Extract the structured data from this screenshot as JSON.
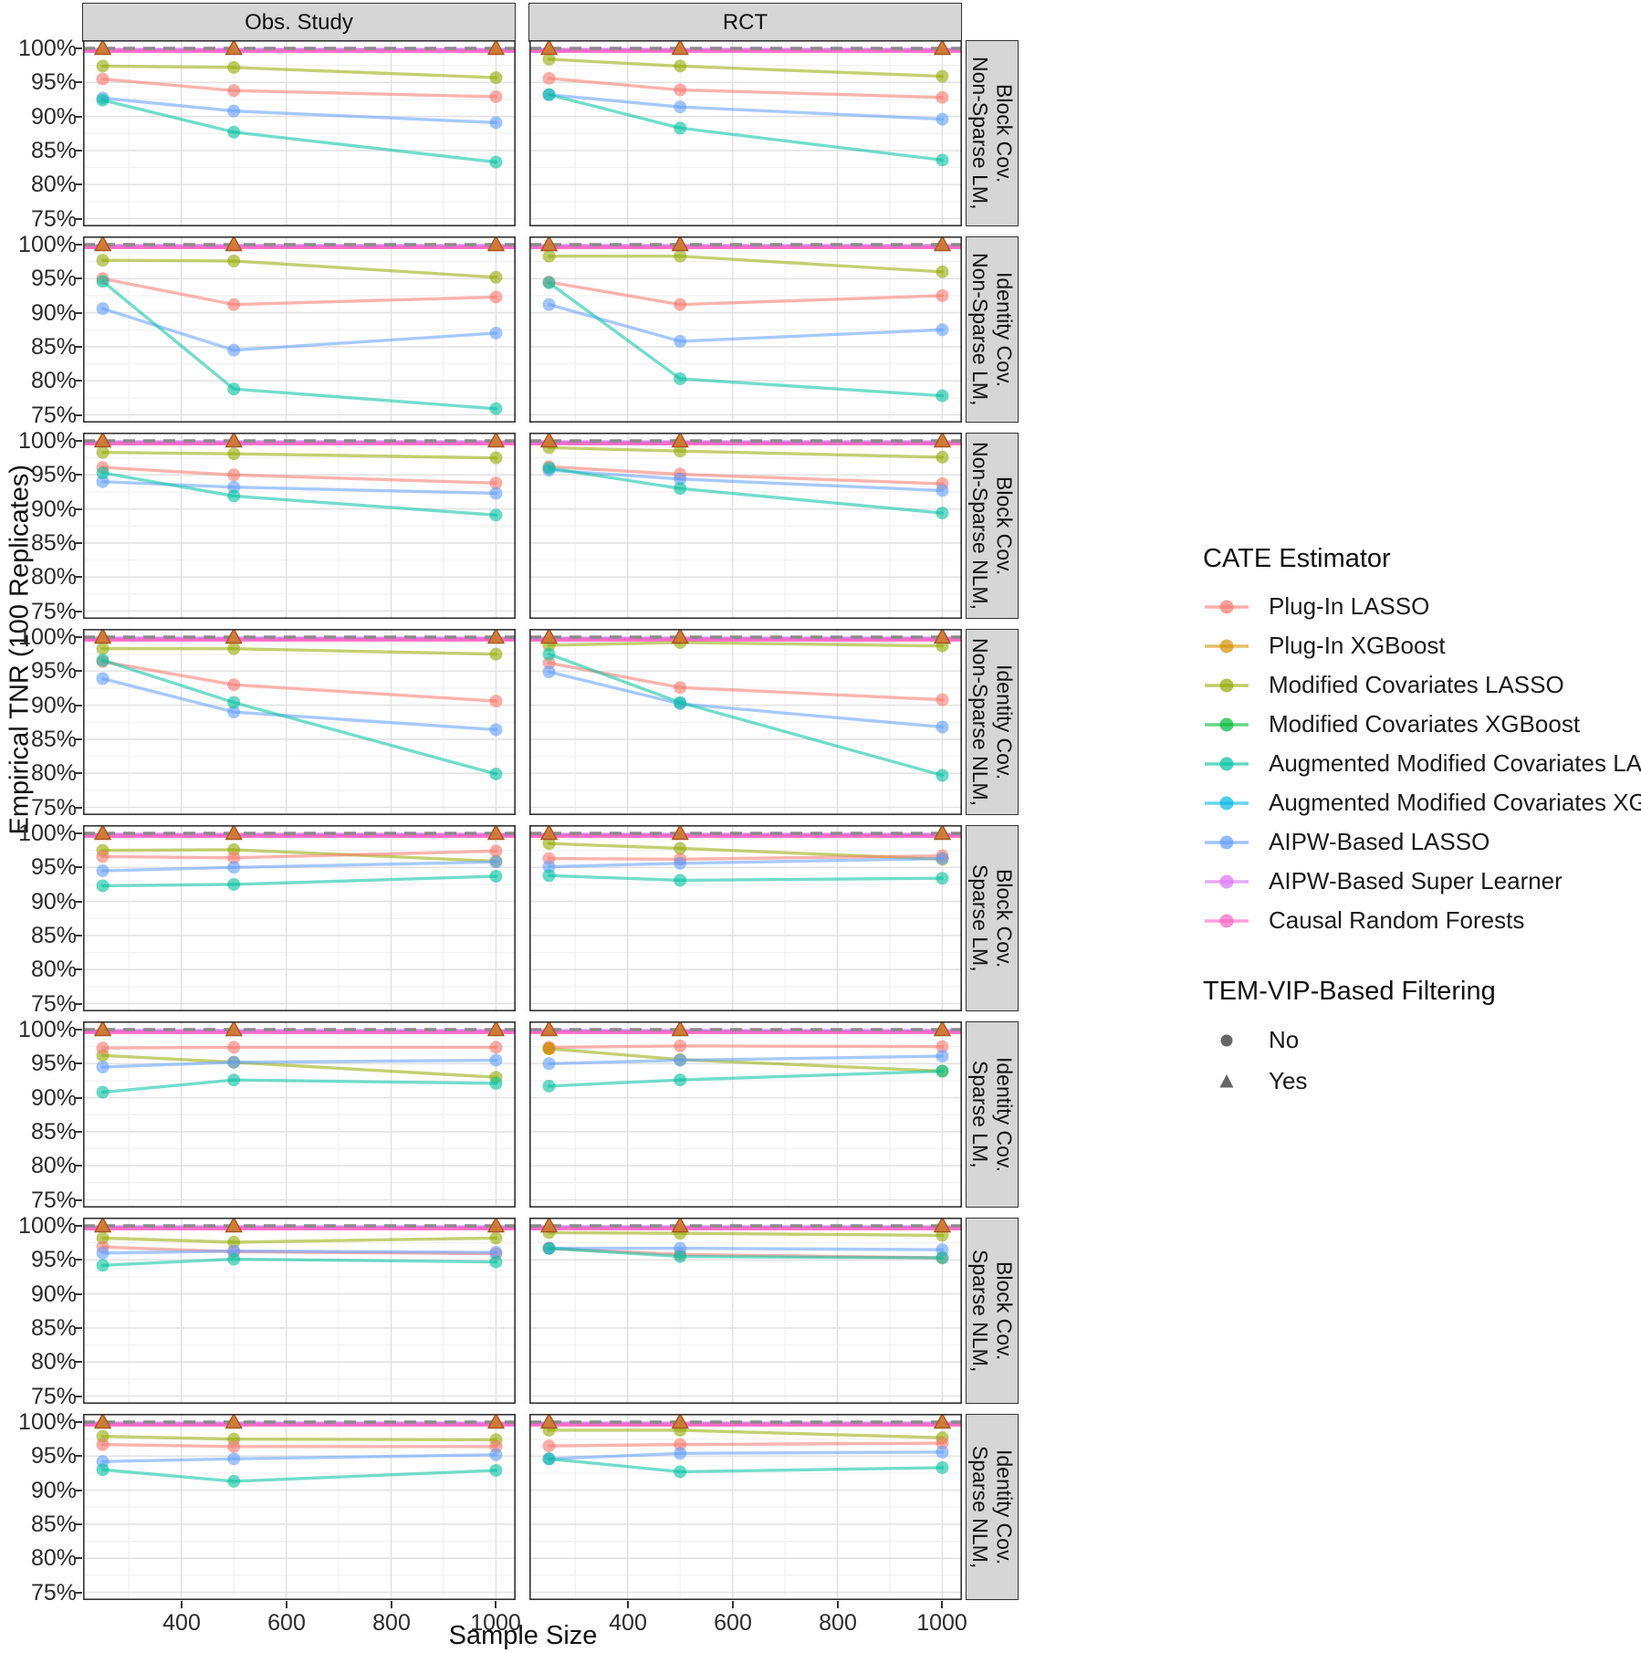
{
  "axes": {
    "y_title": "Empirical TNR (100 Replicates)",
    "x_title": "Sample Size",
    "y_tick_labels": [
      "100%",
      "95%",
      "90%",
      "85%",
      "80%",
      "75%"
    ],
    "x_tick_labels": [
      "400",
      "600",
      "800",
      "1000"
    ]
  },
  "legend": {
    "estimator_title": "CATE Estimator",
    "filtering_title": "TEM-VIP-Based Filtering",
    "filtering_items": [
      {
        "label": "No",
        "shape": "circle"
      },
      {
        "label": "Yes",
        "shape": "triangle"
      }
    ]
  },
  "colors": {
    "strip_bg": "#d6d6d6",
    "panel_border": "#333333",
    "grid_major": "#e3e3e3",
    "grid_minor": "#f1f1f1",
    "ref_dash": "#8a8a8a",
    "triangle_fill": "#CE7A2F",
    "triangle_stroke": "#A85520",
    "tem_glyph": "#666666"
  },
  "chart_data": {
    "type": "line",
    "x": [
      250,
      500,
      1000
    ],
    "xlim": [
      212.5,
      1037.5
    ],
    "ylim": [
      75,
      100
    ],
    "x_major_ticks": [
      400,
      600,
      800,
      1000
    ],
    "x_minor_ticks": [
      300,
      500,
      700,
      900
    ],
    "y_major_ticks": [
      100,
      95,
      90,
      85,
      80,
      75
    ],
    "y_minor_ticks": [
      97.5,
      92.5,
      87.5,
      82.5,
      77.5
    ],
    "reference_dashed_y": 100,
    "filtered_yes_triangles_y": 100,
    "grid": true,
    "legend_position": "right",
    "facet_cols": [
      "Obs. Study",
      "RCT"
    ],
    "facet_rows": [
      [
        "Non-Sparse LM,",
        "Block Cov."
      ],
      [
        "Non-Sparse LM,",
        "Identity Cov."
      ],
      [
        "Non-Sparse NLM,",
        "Block Cov."
      ],
      [
        "Non-Sparse NLM,",
        "Identity Cov."
      ],
      [
        "Sparse LM,",
        "Block Cov."
      ],
      [
        "Sparse LM,",
        "Identity Cov."
      ],
      [
        "Sparse NLM,",
        "Block Cov."
      ],
      [
        "Sparse NLM,",
        "Identity Cov."
      ]
    ],
    "estimators": [
      {
        "key": "plugin_lasso",
        "name": "Plug-In LASSO",
        "color": "#F8766D"
      },
      {
        "key": "plugin_xgboost",
        "name": "Plug-In XGBoost",
        "color": "#D39200"
      },
      {
        "key": "mod_cov_lasso",
        "name": "Modified Covariates LASSO",
        "color": "#93AA00"
      },
      {
        "key": "mod_cov_xgboost",
        "name": "Modified Covariates XGBoost",
        "color": "#00BA38"
      },
      {
        "key": "amc_lasso",
        "name": "Augmented Modified Covariates LASSO",
        "color": "#00C19F"
      },
      {
        "key": "amc_xgboost",
        "name": "Augmented Modified Covariates XGBoost",
        "color": "#00B9E3"
      },
      {
        "key": "aipw_lasso",
        "name": "AIPW-Based LASSO",
        "color": "#619CFF"
      },
      {
        "key": "aipw_sl",
        "name": "AIPW-Based Super Learner",
        "color": "#DB72FB"
      },
      {
        "key": "crf",
        "name": "Causal Random Forests",
        "color": "#FF61C3"
      }
    ],
    "constant_lines": [
      {
        "key": "aipw_sl",
        "y": 99.8
      },
      {
        "key": "crf",
        "y": 99.6
      }
    ],
    "line_series_order": [
      "mod_cov_lasso",
      "plugin_lasso",
      "aipw_lasso",
      "amc_lasso"
    ],
    "panels": [
      {
        "row": 0,
        "col": 0,
        "series": {
          "plugin_lasso": [
            95.5,
            93.8,
            92.9
          ],
          "mod_cov_lasso": [
            97.4,
            97.2,
            95.7
          ],
          "aipw_lasso": [
            92.7,
            90.8,
            89.1
          ],
          "amc_lasso": [
            92.4,
            87.7,
            83.3
          ]
        }
      },
      {
        "row": 0,
        "col": 1,
        "series": {
          "plugin_lasso": [
            95.6,
            93.9,
            92.8
          ],
          "mod_cov_lasso": [
            98.4,
            97.4,
            95.9
          ],
          "aipw_lasso": [
            93.2,
            91.4,
            89.6
          ],
          "amc_lasso": [
            93.2,
            88.3,
            83.6
          ]
        }
      },
      {
        "row": 1,
        "col": 0,
        "series": {
          "plugin_lasso": [
            95.0,
            91.2,
            92.3
          ],
          "mod_cov_lasso": [
            97.7,
            97.6,
            95.2
          ],
          "aipw_lasso": [
            90.6,
            84.5,
            87.0
          ],
          "amc_lasso": [
            94.6,
            78.8,
            75.9
          ]
        }
      },
      {
        "row": 1,
        "col": 1,
        "series": {
          "plugin_lasso": [
            94.5,
            91.2,
            92.5
          ],
          "mod_cov_lasso": [
            98.3,
            98.3,
            96.0
          ],
          "aipw_lasso": [
            91.2,
            85.8,
            87.5
          ],
          "amc_lasso": [
            94.4,
            80.3,
            77.8
          ]
        }
      },
      {
        "row": 2,
        "col": 0,
        "series": {
          "plugin_lasso": [
            96.1,
            95.0,
            93.8
          ],
          "mod_cov_lasso": [
            98.3,
            98.1,
            97.5
          ],
          "aipw_lasso": [
            94.0,
            93.2,
            92.3
          ],
          "amc_lasso": [
            95.3,
            91.9,
            89.1
          ]
        }
      },
      {
        "row": 2,
        "col": 1,
        "series": {
          "plugin_lasso": [
            96.2,
            95.1,
            93.7
          ],
          "mod_cov_lasso": [
            99.0,
            98.5,
            97.6
          ],
          "aipw_lasso": [
            95.7,
            94.4,
            92.7
          ],
          "amc_lasso": [
            96.0,
            93.0,
            89.4
          ]
        }
      },
      {
        "row": 3,
        "col": 0,
        "series": {
          "plugin_lasso": [
            96.4,
            93.0,
            90.6
          ],
          "mod_cov_lasso": [
            98.3,
            98.3,
            97.5
          ],
          "aipw_lasso": [
            93.9,
            89.0,
            86.4
          ],
          "amc_lasso": [
            96.6,
            90.4,
            79.9
          ]
        }
      },
      {
        "row": 3,
        "col": 1,
        "series": {
          "plugin_lasso": [
            96.2,
            92.6,
            90.8
          ],
          "mod_cov_lasso": [
            98.8,
            99.2,
            98.7
          ],
          "aipw_lasso": [
            94.9,
            90.2,
            86.8
          ],
          "amc_lasso": [
            97.5,
            90.4,
            79.7
          ]
        }
      },
      {
        "row": 4,
        "col": 0,
        "series": {
          "plugin_lasso": [
            96.6,
            96.4,
            97.4
          ],
          "mod_cov_lasso": [
            97.5,
            97.6,
            95.9
          ],
          "aipw_lasso": [
            94.5,
            95.0,
            95.8
          ],
          "amc_lasso": [
            92.3,
            92.5,
            93.7
          ]
        }
      },
      {
        "row": 4,
        "col": 1,
        "series": {
          "plugin_lasso": [
            96.3,
            96.2,
            96.7
          ],
          "mod_cov_lasso": [
            98.5,
            97.8,
            96.2
          ],
          "aipw_lasso": [
            95.1,
            95.6,
            96.3
          ],
          "amc_lasso": [
            93.8,
            93.1,
            93.4
          ]
        }
      },
      {
        "row": 5,
        "col": 0,
        "series": {
          "plugin_lasso": [
            97.3,
            97.4,
            97.4
          ],
          "mod_cov_lasso": [
            96.2,
            95.2,
            93.0
          ],
          "aipw_lasso": [
            94.5,
            95.2,
            95.5
          ],
          "amc_lasso": [
            90.8,
            92.6,
            92.1
          ]
        }
      },
      {
        "row": 5,
        "col": 1,
        "series": {
          "plugin_lasso": [
            97.4,
            97.6,
            97.5
          ],
          "mod_cov_lasso": [
            97.2,
            95.6,
            93.9
          ],
          "aipw_lasso": [
            95.0,
            95.5,
            96.1
          ],
          "amc_lasso": [
            91.7,
            92.6,
            93.9
          ]
        },
        "extra_points": [
          {
            "key": "plugin_xgboost",
            "x": 250,
            "y": 97.2
          }
        ]
      },
      {
        "row": 6,
        "col": 0,
        "series": {
          "plugin_lasso": [
            96.9,
            96.2,
            95.9
          ],
          "mod_cov_lasso": [
            98.2,
            97.6,
            98.2
          ],
          "aipw_lasso": [
            96.0,
            96.3,
            96.1
          ],
          "amc_lasso": [
            94.2,
            95.1,
            94.7
          ]
        }
      },
      {
        "row": 6,
        "col": 1,
        "series": {
          "plugin_lasso": [
            96.7,
            95.8,
            95.3
          ],
          "mod_cov_lasso": [
            99.0,
            98.9,
            98.6
          ],
          "aipw_lasso": [
            96.7,
            96.7,
            96.5
          ],
          "amc_lasso": [
            96.7,
            95.5,
            95.3
          ]
        }
      },
      {
        "row": 7,
        "col": 0,
        "series": {
          "plugin_lasso": [
            96.7,
            96.4,
            96.4
          ],
          "mod_cov_lasso": [
            97.9,
            97.5,
            97.4
          ],
          "aipw_lasso": [
            94.2,
            94.6,
            95.2
          ],
          "amc_lasso": [
            93.0,
            91.3,
            92.9
          ]
        }
      },
      {
        "row": 7,
        "col": 1,
        "series": {
          "plugin_lasso": [
            96.5,
            96.7,
            96.9
          ],
          "mod_cov_lasso": [
            98.8,
            98.8,
            97.7
          ],
          "aipw_lasso": [
            94.6,
            95.4,
            95.6
          ],
          "amc_lasso": [
            94.6,
            92.7,
            93.3
          ]
        }
      }
    ]
  }
}
